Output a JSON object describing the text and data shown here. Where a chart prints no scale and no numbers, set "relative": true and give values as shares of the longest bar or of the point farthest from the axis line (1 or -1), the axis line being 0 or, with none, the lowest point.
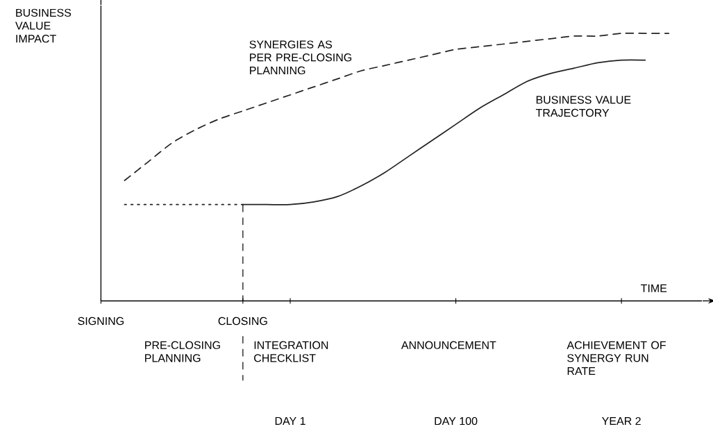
{
  "chart_data": {
    "type": "line",
    "relative": true,
    "xlabel": "TIME",
    "ylabel": "BUSINESS VALUE IMPACT",
    "categories": [
      "SIGNING",
      null,
      null,
      null,
      null,
      null,
      "CLOSING",
      null,
      "DAY 1",
      null,
      null,
      null,
      null,
      null,
      null,
      "DAY 100",
      null,
      null,
      null,
      null,
      null,
      null,
      "YEAR 2",
      null,
      null,
      null
    ],
    "series": [
      {
        "name": "SYNERGIES AS PER PRE-CLOSING PLANNING",
        "color": "#222222",
        "line_style": "dashed",
        "values": [
          null,
          0.45,
          0.52,
          0.59,
          0.64,
          0.68,
          0.71,
          0.74,
          0.77,
          0.8,
          0.83,
          0.86,
          0.88,
          0.9,
          0.92,
          0.94,
          0.95,
          0.96,
          0.97,
          0.98,
          0.99,
          0.99,
          1,
          1,
          1,
          null
        ]
      },
      {
        "name": "BUSINESS VALUE TRAJECTORY",
        "color": "#222222",
        "line_style": "solid",
        "values": [
          null,
          null,
          null,
          null,
          null,
          null,
          0.36,
          0.36,
          0.36,
          0.37,
          0.39,
          0.43,
          0.48,
          0.54,
          0.6,
          0.66,
          0.72,
          0.77,
          0.82,
          0.85,
          0.87,
          0.89,
          0.9,
          0.9,
          null,
          null
        ]
      },
      {
        "color": "#222222",
        "line_style": "dotted",
        "values": [
          null,
          0.36,
          0.36,
          0.36,
          0.36,
          0.36,
          0.36,
          null,
          null,
          null,
          null,
          null,
          null,
          null,
          null,
          null,
          null,
          null,
          null,
          null,
          null,
          null,
          null,
          null,
          null,
          null
        ]
      }
    ],
    "ref_lines": [
      {
        "axis": "x",
        "value": "CLOSING",
        "line_style": "dashed"
      }
    ],
    "annotations": [
      "PRE-CLOSING PLANNING",
      "INTEGRATION CHECKLIST",
      "ANNOUNCEMENT",
      "ACHIEVEMENT OF SYNERGY RUN RATE"
    ],
    "grid": false
  }
}
